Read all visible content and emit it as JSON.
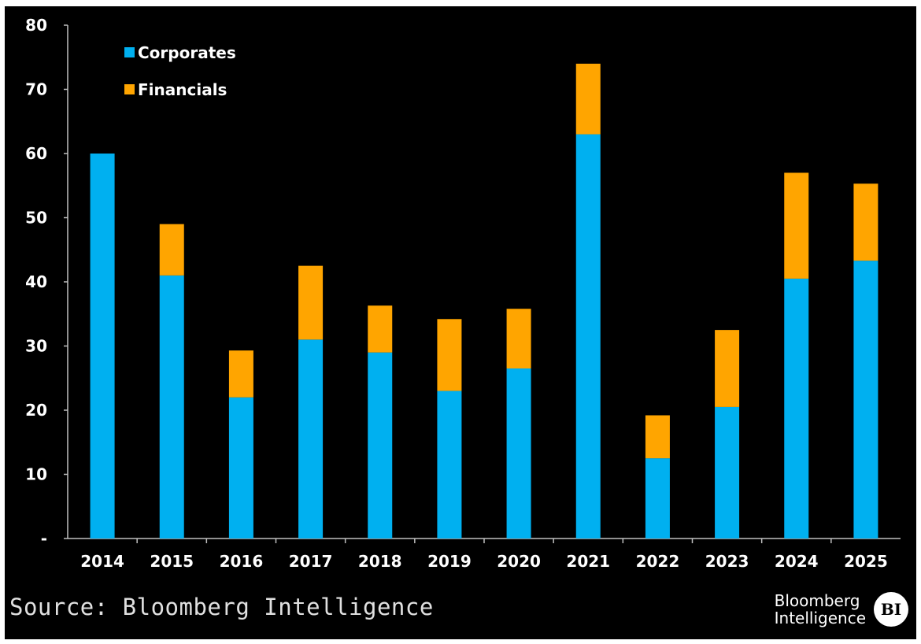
{
  "chart_data": {
    "type": "bar",
    "stacked": true,
    "categories": [
      "2014",
      "2015",
      "2016",
      "2017",
      "2018",
      "2019",
      "2020",
      "2021",
      "2022",
      "2023",
      "2024",
      "2025"
    ],
    "series": [
      {
        "name": "Corporates",
        "color": "#00b0f0",
        "values": [
          60,
          41,
          22,
          31,
          29,
          23,
          26.5,
          63,
          12.5,
          20.5,
          40.5,
          43.3
        ]
      },
      {
        "name": "Financials",
        "color": "#ffa500",
        "values": [
          0,
          8,
          7.3,
          11.5,
          7.3,
          11.2,
          9.3,
          11,
          6.7,
          12,
          16.5,
          12
        ]
      }
    ],
    "ylim": [
      0,
      80
    ],
    "yticks": [
      80,
      70,
      60,
      50,
      40,
      30,
      20,
      10,
      0
    ],
    "ytick_labels": [
      "80",
      "70",
      "60",
      "50",
      "40",
      "30",
      "20",
      "10",
      "-"
    ],
    "grid": false,
    "legend": "top-left",
    "background": "#000000"
  },
  "footer": {
    "source": "Source: Bloomberg Intelligence",
    "brand_line1": "Bloomberg",
    "brand_line2": "Intelligence",
    "badge": "BI"
  }
}
